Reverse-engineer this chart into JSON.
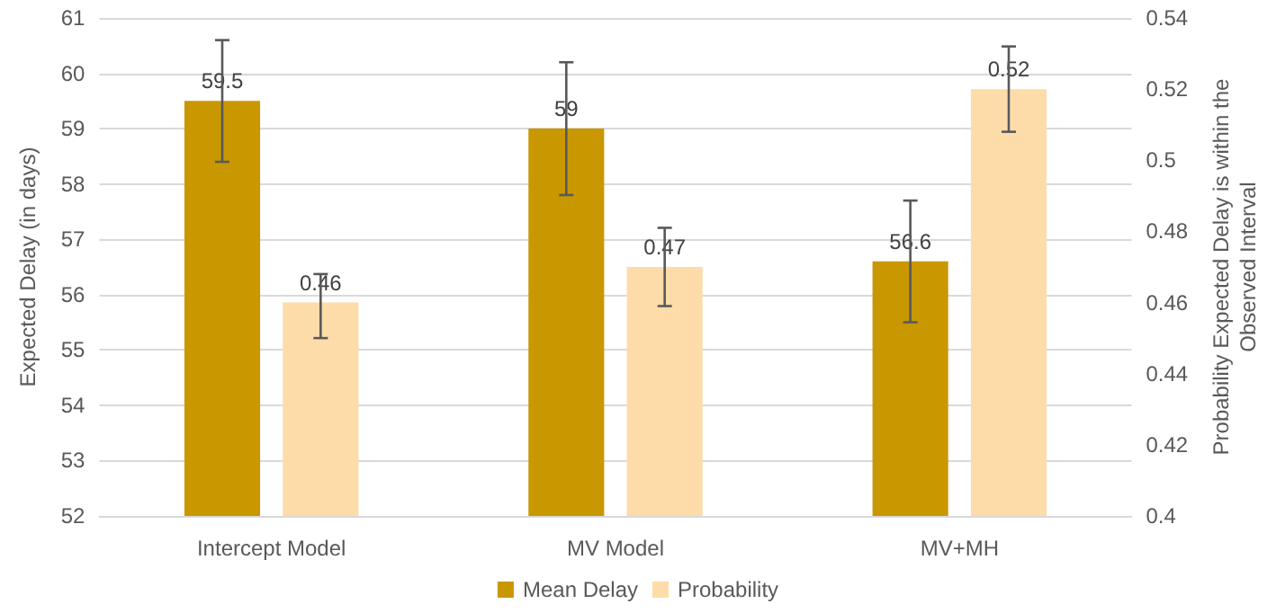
{
  "chart_data": {
    "type": "bar",
    "ylabel": "Expected Delay (in days)",
    "y2label": "Probability Expected Delay is within the Observed Interval",
    "categories": [
      "Intercept Model",
      "MV Model",
      "MV+MH"
    ],
    "series": [
      {
        "name": "Mean Delay",
        "color": "#c99700",
        "values": [
          59.5,
          59,
          56.6
        ],
        "errors": [
          [
            58.4,
            60.6
          ],
          [
            57.8,
            60.2
          ],
          [
            55.5,
            57.7
          ]
        ]
      },
      {
        "name": "Probability",
        "color": "#fddcaa",
        "axis": "y2",
        "values": [
          0.46,
          0.47,
          0.52
        ],
        "errors": [
          [
            0.45,
            0.468
          ],
          [
            0.459,
            0.481
          ],
          [
            0.508,
            0.532
          ]
        ]
      }
    ],
    "ylim": [
      52,
      61
    ],
    "yticks": [
      52,
      53,
      54,
      55,
      56,
      57,
      58,
      59,
      60,
      61
    ],
    "y2lim": [
      0.4,
      0.54
    ],
    "y2ticks": [
      0.4,
      0.42,
      0.44,
      0.46,
      0.48,
      0.5,
      0.52,
      0.54
    ],
    "data_labels": true,
    "grid": "y",
    "legend": "bottom"
  }
}
